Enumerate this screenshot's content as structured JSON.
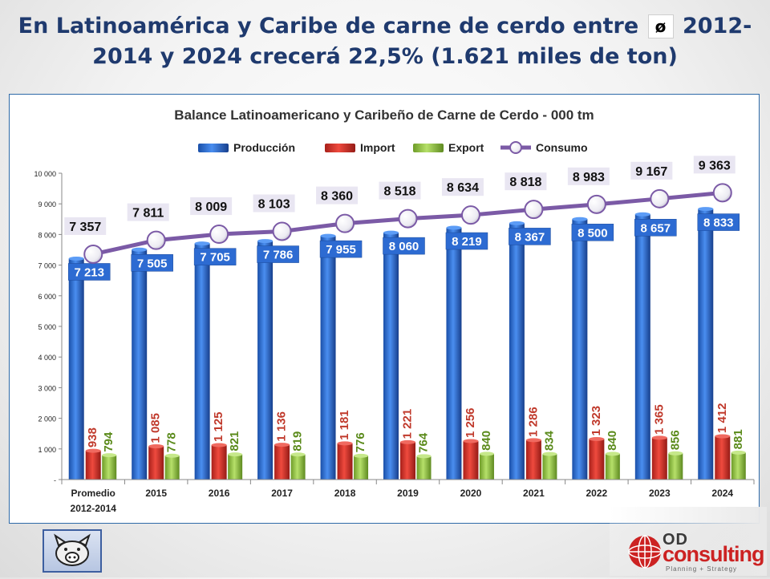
{
  "slide": {
    "title_part1": "En Latinoamérica y Caribe de carne de cerdo entre",
    "title_symbol": "ø",
    "title_part2": "2012-",
    "title_line2": "2014 y 2024 crecerá 22,5% (1.621 miles de ton)"
  },
  "chart_data": {
    "type": "bar",
    "title": "Balance Latinoamericano y Caribeño de Carne de Cerdo - 000 tm",
    "categories": [
      "Promedio 2012-2014",
      "2015",
      "2016",
      "2017",
      "2018",
      "2019",
      "2020",
      "2021",
      "2022",
      "2023",
      "2024"
    ],
    "category_lines": [
      [
        "Promedio",
        "2012-2014"
      ],
      [
        "2015"
      ],
      [
        "2016"
      ],
      [
        "2017"
      ],
      [
        "2018"
      ],
      [
        "2019"
      ],
      [
        "2020"
      ],
      [
        "2021"
      ],
      [
        "2022"
      ],
      [
        "2023"
      ],
      [
        "2024"
      ]
    ],
    "series": [
      {
        "name": "Producción",
        "kind": "bar",
        "color": "#2a6ad0",
        "values": [
          7213,
          7505,
          7705,
          7786,
          7955,
          8060,
          8219,
          8367,
          8500,
          8657,
          8833
        ],
        "labels": [
          "7 213",
          "7 505",
          "7 705",
          "7 786",
          "7 955",
          "8 060",
          "8 219",
          "8 367",
          "8 500",
          "8 657",
          "8 833"
        ]
      },
      {
        "name": "Import",
        "kind": "bar",
        "color": "#d62a22",
        "values": [
          938,
          1085,
          1125,
          1136,
          1181,
          1221,
          1256,
          1286,
          1323,
          1365,
          1412
        ],
        "labels": [
          "938",
          "1 085",
          "1 125",
          "1 136",
          "1 181",
          "1 221",
          "1 256",
          "1 286",
          "1 323",
          "1 365",
          "1 412"
        ]
      },
      {
        "name": "Export",
        "kind": "bar",
        "color": "#8fc23a",
        "values": [
          794,
          778,
          821,
          819,
          776,
          764,
          840,
          834,
          840,
          856,
          881
        ],
        "labels": [
          "794",
          "778",
          "821",
          "819",
          "776",
          "764",
          "840",
          "834",
          "840",
          "856",
          "881"
        ]
      },
      {
        "name": "Consumo",
        "kind": "line",
        "color": "#7b5aa6",
        "values": [
          7357,
          7811,
          8009,
          8103,
          8360,
          8518,
          8634,
          8818,
          8983,
          9167,
          9363
        ],
        "labels": [
          "7 357",
          "7 811",
          "8 009",
          "8 103",
          "8 360",
          "8 518",
          "8 634",
          "8 818",
          "8 983",
          "9 167",
          "9 363"
        ]
      }
    ],
    "y_ticks": [
      0,
      1000,
      2000,
      3000,
      4000,
      5000,
      6000,
      7000,
      8000,
      9000,
      10000
    ],
    "y_tick_labels": [
      "-",
      "1 000",
      "2 000",
      "3 000",
      "4 000",
      "5 000",
      "6 000",
      "7 000",
      "8 000",
      "9 000",
      "10 000"
    ],
    "ylim": [
      0,
      10000
    ],
    "legend_position": "top",
    "xlabel": "",
    "ylabel": ""
  },
  "colors": {
    "title": "#1f3a6e",
    "import_label": "#c0392b",
    "export_label": "#5a8a1a",
    "data_label_bg": "#e9e6f2"
  },
  "logos": {
    "left": "pig-icon",
    "right_line1": "OD",
    "right_line2": "consulting",
    "right_tagline": "Planning + Strategy"
  }
}
